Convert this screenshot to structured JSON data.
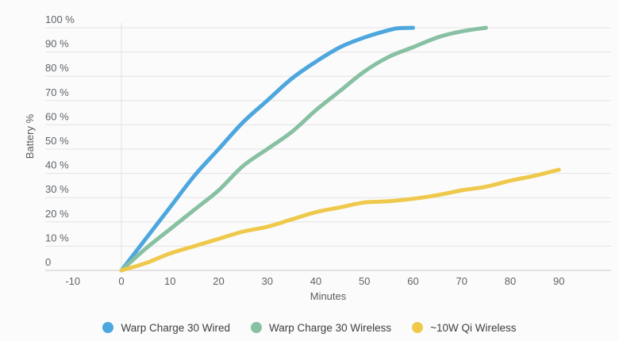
{
  "chart_data": {
    "type": "line",
    "title": "",
    "xlabel": "Minutes",
    "ylabel": "Battery %",
    "x_ticks": [
      -10,
      0,
      10,
      20,
      30,
      40,
      50,
      60,
      70,
      80,
      90
    ],
    "y_ticks_labels": [
      "0",
      "10 %",
      "20 %",
      "30 %",
      "40 %",
      "50 %",
      "60 %",
      "70 %",
      "80 %",
      "90 %",
      "100 %"
    ],
    "y_ticks_values": [
      0,
      10,
      20,
      30,
      40,
      50,
      60,
      70,
      80,
      90,
      100
    ],
    "xlim": [
      -15.7,
      100.7
    ],
    "ylim": [
      0,
      100
    ],
    "grid": "horizontal gridlines every 10%, single vertical gridline at x=0",
    "legend_position": "bottom",
    "series": [
      {
        "name": "Warp Charge 30 Wired",
        "color": "#4da6de",
        "points": [
          [
            0,
            0
          ],
          [
            5,
            13
          ],
          [
            10,
            26
          ],
          [
            15,
            39
          ],
          [
            20,
            50
          ],
          [
            25,
            61
          ],
          [
            30,
            70
          ],
          [
            35,
            79
          ],
          [
            40,
            86
          ],
          [
            45,
            92
          ],
          [
            50,
            96
          ],
          [
            55,
            99
          ],
          [
            57,
            99.8
          ],
          [
            60,
            100
          ]
        ]
      },
      {
        "name": "Warp Charge 30 Wireless",
        "color": "#87c0a2",
        "points": [
          [
            0,
            0
          ],
          [
            5,
            9
          ],
          [
            10,
            17
          ],
          [
            15,
            25
          ],
          [
            20,
            33
          ],
          [
            25,
            43
          ],
          [
            30,
            50
          ],
          [
            35,
            57
          ],
          [
            40,
            66
          ],
          [
            45,
            74
          ],
          [
            50,
            82
          ],
          [
            55,
            88
          ],
          [
            60,
            92
          ],
          [
            65,
            96
          ],
          [
            70,
            98.5
          ],
          [
            75,
            100
          ]
        ]
      },
      {
        "name": "~10W Qi Wireless",
        "color": "#efc94c",
        "points": [
          [
            0,
            0
          ],
          [
            5,
            3
          ],
          [
            10,
            7
          ],
          [
            15,
            10
          ],
          [
            20,
            13
          ],
          [
            25,
            16
          ],
          [
            30,
            18
          ],
          [
            35,
            21
          ],
          [
            40,
            24
          ],
          [
            45,
            26
          ],
          [
            50,
            28
          ],
          [
            55,
            28.5
          ],
          [
            60,
            29.5
          ],
          [
            65,
            31
          ],
          [
            70,
            33
          ],
          [
            75,
            34.5
          ],
          [
            80,
            37
          ],
          [
            85,
            39
          ],
          [
            90,
            41.5
          ]
        ]
      }
    ]
  },
  "colors": {
    "background": "#fbfbfb",
    "gridline": "#e3e3e3",
    "axis_line": "#c9c9c9",
    "tick_text": "#5f6368",
    "legend_text": "#3c3f43"
  }
}
